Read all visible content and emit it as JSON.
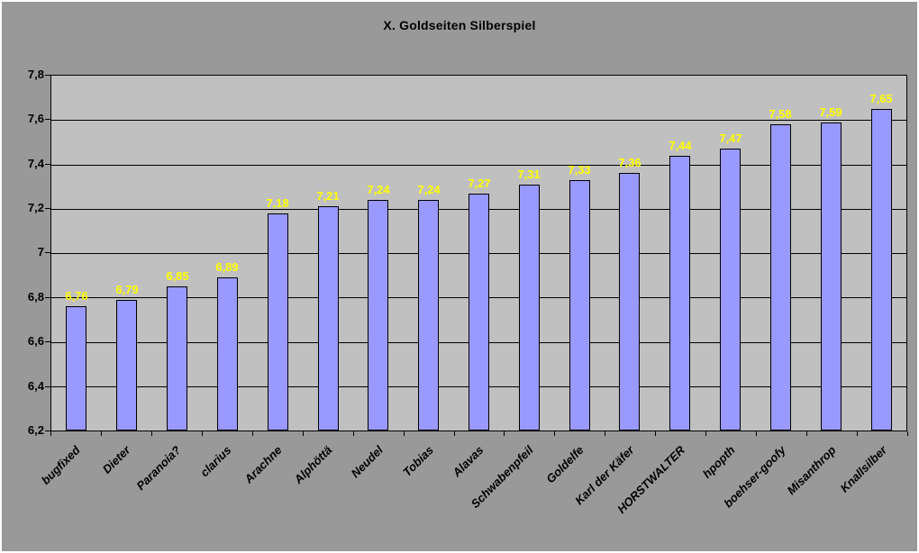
{
  "chart_data": {
    "type": "bar",
    "title": "X. Goldseiten Silberspiel",
    "categories": [
      "bugfixed",
      "Dieter",
      "Paranoia?",
      "clarius",
      "Arachne",
      "Alphöttä",
      "Neudel",
      "Tobias",
      "Alavas",
      "Schwabenpfeil",
      "Goldelfe",
      "Karl der Käfer",
      "HORSTWALTER",
      "hpopth",
      "boehser-goofy",
      "Misanthrop",
      "Knallsilber"
    ],
    "values": [
      6.76,
      6.79,
      6.85,
      6.89,
      7.18,
      7.21,
      7.24,
      7.24,
      7.27,
      7.31,
      7.33,
      7.36,
      7.44,
      7.47,
      7.58,
      7.59,
      7.65
    ],
    "value_labels": [
      "6,76",
      "6,79",
      "6,85",
      "6,89",
      "7,18",
      "7,21",
      "7,24",
      "7,24",
      "7,27",
      "7,31",
      "7,33",
      "7,36",
      "7,44",
      "7,47",
      "7,58",
      "7,59",
      "7,65"
    ],
    "xlabel": "",
    "ylabel": "",
    "ylim": [
      6.2,
      7.8
    ],
    "ytick_step": 0.2,
    "ytick_labels": [
      "6,2",
      "6,4",
      "6,6",
      "6,8",
      "7",
      "7,2",
      "7,4",
      "7,6",
      "7,8"
    ],
    "grid": "horizontal",
    "legend": "none",
    "colors": {
      "chart_background": "#999999",
      "plot_background": "#C0C0C0",
      "bar_fill": "#9999FF",
      "bar_border": "#000000",
      "value_label": "#FFFF00",
      "gridline": "#000000",
      "axis_line": "#000000",
      "text": "#000000"
    }
  }
}
